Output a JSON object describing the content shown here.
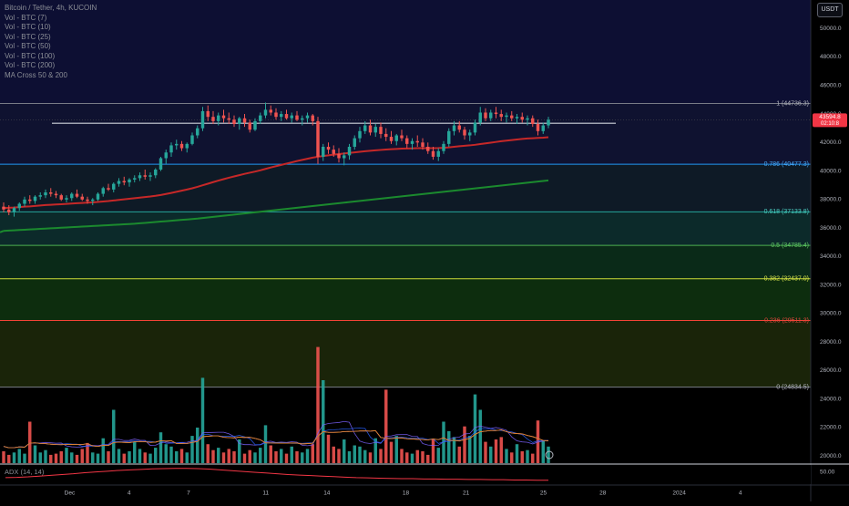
{
  "header": {
    "symbol_line": "Bitcoin / Tether, 4h, KUCOIN",
    "indicators": [
      "Vol - BTC (7)",
      "Vol - BTC (10)",
      "Vol - BTC (25)",
      "Vol - BTC (50)",
      "Vol - BTC (100)",
      "Vol - BTC (200)",
      "MA Cross 50 & 200"
    ],
    "currency": "USDT"
  },
  "price_scale": {
    "ticks": [
      "50000.0",
      "48000.0",
      "46000.0",
      "44000.0",
      "42000.0",
      "40000.0",
      "38000.0",
      "36000.0",
      "34000.0",
      "32000.0",
      "30000.0",
      "28000.0",
      "26000.0",
      "24000.0",
      "22000.0",
      "20000.0"
    ],
    "tick_values": [
      50000,
      48000,
      46000,
      44000,
      42000,
      40000,
      38000,
      36000,
      34000,
      32000,
      30000,
      28000,
      26000,
      24000,
      22000,
      20000
    ],
    "last_price": "43594.8",
    "countdown": "02:10:8"
  },
  "fibonacci": {
    "levels": [
      {
        "label": "1 (44736.3)",
        "value": 44736.3,
        "line": "#787b86",
        "fill": "#0f1230",
        "label_color": "#b2b5be"
      },
      {
        "label": "0.786 (40477.3)",
        "value": 40477.3,
        "line": "#2196f3",
        "fill": "#0e1a26",
        "label_color": "#4aa8f5"
      },
      {
        "label": "0.618 (37133.8)",
        "value": 37133.8,
        "line": "#26a69a",
        "fill": "#0c2a2a",
        "label_color": "#4dd0c3"
      },
      {
        "label": "0.5 (34785.4)",
        "value": 34785.4,
        "line": "#4caf50",
        "fill": "#0a2a18",
        "label_color": "#5fc864"
      },
      {
        "label": "0.382 (32437.0)",
        "value": 32437.0,
        "line": "#cddc39",
        "fill": "#0d2d0e",
        "label_color": "#d6e34c"
      },
      {
        "label": "0.236 (29511.3)",
        "value": 29511.3,
        "line": "#f44336",
        "fill": "#1a2409",
        "label_color": "#e0473c"
      },
      {
        "label": "0 (24834.5)",
        "value": 24834.5,
        "line": "#787b86",
        "fill": "#2b0b0b",
        "label_color": "#b2b5be"
      }
    ],
    "bottom_fill": "#000000"
  },
  "time_axis": {
    "labels": [
      "Dec",
      "4",
      "7",
      "11",
      "14",
      "18",
      "21",
      "25",
      "28",
      "2024",
      "4"
    ],
    "positions": [
      0.082,
      0.152,
      0.222,
      0.313,
      0.385,
      0.478,
      0.549,
      0.64,
      0.71,
      0.8,
      0.872
    ]
  },
  "adx": {
    "label": "ADX (14, 14)",
    "scale_label": "50.00",
    "scale_value": 50,
    "values": [
      18,
      19,
      21,
      24,
      27,
      30,
      33,
      37,
      40,
      43,
      46,
      48,
      50,
      52,
      53,
      54,
      54,
      53,
      51,
      48,
      45,
      42,
      39,
      36,
      33,
      30,
      28,
      26,
      24,
      22,
      20,
      18,
      17,
      16,
      15,
      14,
      14,
      13,
      13,
      12,
      12,
      11,
      11,
      10,
      10,
      9,
      9,
      8,
      8
    ],
    "color": "#f23645"
  },
  "colors": {
    "up": "#26a69a",
    "down": "#ef5350",
    "sma50": "#c62828",
    "sma200": "#1b8a2e",
    "hline": "#d1d4dc",
    "last_price_bg": "#f23645"
  },
  "chart_data": {
    "type": "candlestick",
    "symbol": "Bitcoin / Tether",
    "interval": "4h",
    "exchange": "KUCOIN",
    "y_range": [
      19500,
      52000
    ],
    "candles": [
      [
        37500,
        37800,
        37100,
        37300
      ],
      [
        37300,
        37600,
        36900,
        37100
      ],
      [
        37100,
        37500,
        36800,
        37400
      ],
      [
        37400,
        37800,
        37200,
        37700
      ],
      [
        37700,
        38200,
        37500,
        38000
      ],
      [
        38000,
        38300,
        37700,
        37900
      ],
      [
        37900,
        38300,
        37700,
        38200
      ],
      [
        38200,
        38500,
        38000,
        38300
      ],
      [
        38300,
        38700,
        38100,
        38500
      ],
      [
        38500,
        38800,
        38200,
        38400
      ],
      [
        38400,
        38600,
        38100,
        38300
      ],
      [
        38300,
        38400,
        37900,
        38000
      ],
      [
        38000,
        38300,
        37800,
        38100
      ],
      [
        38100,
        38500,
        37900,
        38400
      ],
      [
        38400,
        38700,
        38100,
        38200
      ],
      [
        38200,
        38400,
        37900,
        38000
      ],
      [
        38000,
        38200,
        37700,
        37900
      ],
      [
        37900,
        38100,
        37600,
        38000
      ],
      [
        38000,
        38500,
        37900,
        38400
      ],
      [
        38400,
        38900,
        38200,
        38800
      ],
      [
        38800,
        39100,
        38600,
        38700
      ],
      [
        38700,
        39200,
        38500,
        39100
      ],
      [
        39100,
        39500,
        38900,
        39300
      ],
      [
        39300,
        39600,
        39000,
        39200
      ],
      [
        39200,
        39500,
        38900,
        39400
      ],
      [
        39400,
        39700,
        39200,
        39500
      ],
      [
        39500,
        39900,
        39300,
        39700
      ],
      [
        39700,
        40100,
        39400,
        39600
      ],
      [
        39600,
        39900,
        39300,
        39700
      ],
      [
        39700,
        40200,
        39500,
        40100
      ],
      [
        40100,
        41000,
        40000,
        40900
      ],
      [
        40900,
        41500,
        40500,
        41300
      ],
      [
        41300,
        42000,
        41000,
        41800
      ],
      [
        41800,
        42200,
        41500,
        41900
      ],
      [
        41900,
        42100,
        41400,
        41600
      ],
      [
        41600,
        42000,
        41300,
        41900
      ],
      [
        41900,
        42700,
        41800,
        42500
      ],
      [
        42500,
        43200,
        42300,
        43000
      ],
      [
        43000,
        44500,
        42800,
        44200
      ],
      [
        44200,
        44600,
        43500,
        43800
      ],
      [
        43800,
        44200,
        43300,
        43500
      ],
      [
        43500,
        44100,
        43200,
        43900
      ],
      [
        43900,
        44300,
        43400,
        43700
      ],
      [
        43700,
        44100,
        43300,
        43600
      ],
      [
        43600,
        43900,
        43100,
        43300
      ],
      [
        43300,
        43800,
        42900,
        43700
      ],
      [
        43700,
        44000,
        43100,
        43400
      ],
      [
        43400,
        43600,
        42700,
        42900
      ],
      [
        42900,
        43700,
        42800,
        43500
      ],
      [
        43500,
        44100,
        43300,
        43900
      ],
      [
        43900,
        44800,
        43700,
        44300
      ],
      [
        44300,
        44600,
        43900,
        44100
      ],
      [
        44100,
        44400,
        43600,
        43800
      ],
      [
        43800,
        44200,
        43500,
        44000
      ],
      [
        44000,
        44300,
        43600,
        43700
      ],
      [
        43700,
        44100,
        43400,
        43900
      ],
      [
        43900,
        44200,
        43500,
        43600
      ],
      [
        43600,
        43900,
        43200,
        43700
      ],
      [
        43700,
        44100,
        43400,
        43900
      ],
      [
        43900,
        44000,
        43200,
        43500
      ],
      [
        43500,
        43800,
        40500,
        41000
      ],
      [
        41000,
        41900,
        40700,
        41700
      ],
      [
        41700,
        42000,
        41200,
        41500
      ],
      [
        41500,
        41800,
        41000,
        41200
      ],
      [
        41200,
        41600,
        40600,
        40900
      ],
      [
        40900,
        41300,
        40400,
        41100
      ],
      [
        41100,
        41900,
        40800,
        41700
      ],
      [
        41700,
        42500,
        41500,
        42300
      ],
      [
        42300,
        43100,
        42000,
        42800
      ],
      [
        42800,
        43500,
        42600,
        43200
      ],
      [
        43200,
        43600,
        42500,
        42700
      ],
      [
        42700,
        43300,
        42400,
        43100
      ],
      [
        43100,
        43400,
        42300,
        42600
      ],
      [
        42600,
        43000,
        42100,
        42400
      ],
      [
        42400,
        42800,
        41900,
        42100
      ],
      [
        42100,
        42600,
        41800,
        42500
      ],
      [
        42500,
        42900,
        42100,
        42300
      ],
      [
        42300,
        42500,
        41600,
        41900
      ],
      [
        41900,
        42300,
        41500,
        42100
      ],
      [
        42100,
        42500,
        41700,
        42000
      ],
      [
        42000,
        42300,
        41500,
        41700
      ],
      [
        41700,
        42000,
        41200,
        41400
      ],
      [
        41400,
        41700,
        40800,
        41000
      ],
      [
        41000,
        41600,
        40700,
        41400
      ],
      [
        41400,
        42100,
        41200,
        41900
      ],
      [
        41900,
        43000,
        41700,
        42800
      ],
      [
        42800,
        43500,
        42500,
        43200
      ],
      [
        43200,
        43500,
        42700,
        42900
      ],
      [
        42900,
        43100,
        42200,
        42500
      ],
      [
        42500,
        42900,
        42100,
        42700
      ],
      [
        42700,
        43600,
        42500,
        43400
      ],
      [
        43400,
        44500,
        43200,
        44100
      ],
      [
        44100,
        44400,
        43500,
        43700
      ],
      [
        43700,
        44300,
        43500,
        44100
      ],
      [
        44100,
        44500,
        43700,
        44000
      ],
      [
        44000,
        44300,
        43500,
        43800
      ],
      [
        43800,
        44100,
        43400,
        43900
      ],
      [
        43900,
        44200,
        43500,
        43700
      ],
      [
        43700,
        44000,
        43300,
        43800
      ],
      [
        43800,
        44100,
        43400,
        43600
      ],
      [
        43600,
        43900,
        43200,
        43700
      ],
      [
        43700,
        43900,
        43100,
        43300
      ],
      [
        43300,
        43600,
        42500,
        42800
      ],
      [
        42800,
        43400,
        42600,
        43200
      ],
      [
        43200,
        43800,
        43000,
        43594.8
      ]
    ],
    "volume": [
      0.1,
      0.07,
      0.09,
      0.12,
      0.08,
      0.35,
      0.15,
      0.09,
      0.11,
      0.07,
      0.08,
      0.1,
      0.13,
      0.09,
      0.07,
      0.12,
      0.17,
      0.09,
      0.08,
      0.21,
      0.1,
      0.45,
      0.12,
      0.08,
      0.1,
      0.18,
      0.12,
      0.09,
      0.08,
      0.13,
      0.26,
      0.16,
      0.14,
      0.1,
      0.12,
      0.09,
      0.23,
      0.3,
      0.72,
      0.16,
      0.11,
      0.13,
      0.09,
      0.12,
      0.1,
      0.2,
      0.08,
      0.11,
      0.09,
      0.13,
      0.32,
      0.15,
      0.1,
      0.12,
      0.08,
      0.14,
      0.1,
      0.09,
      0.12,
      0.16,
      0.98,
      0.7,
      0.24,
      0.14,
      0.12,
      0.2,
      0.1,
      0.15,
      0.14,
      0.11,
      0.09,
      0.21,
      0.12,
      0.62,
      0.18,
      0.23,
      0.12,
      0.09,
      0.08,
      0.11,
      0.1,
      0.07,
      0.2,
      0.13,
      0.35,
      0.27,
      0.22,
      0.14,
      0.31,
      0.23,
      0.58,
      0.45,
      0.18,
      0.14,
      0.2,
      0.22,
      0.12,
      0.09,
      0.16,
      0.1,
      0.11,
      0.08,
      0.36,
      0.19,
      0.14
    ],
    "sma50": [
      37400,
      37420,
      37440,
      37470,
      37500,
      37520,
      37550,
      37580,
      37610,
      37630,
      37650,
      37670,
      37690,
      37720,
      37740,
      37760,
      37780,
      37800,
      37830,
      37860,
      37890,
      37930,
      37970,
      38010,
      38050,
      38090,
      38130,
      38170,
      38210,
      38260,
      38320,
      38390,
      38460,
      38540,
      38620,
      38700,
      38790,
      38890,
      39000,
      39110,
      39220,
      39330,
      39430,
      39530,
      39620,
      39710,
      39800,
      39880,
      39960,
      40050,
      40150,
      40250,
      40340,
      40430,
      40520,
      40610,
      40700,
      40780,
      40860,
      40940,
      41000,
      41050,
      41100,
      41150,
      41190,
      41230,
      41270,
      41310,
      41350,
      41390,
      41420,
      41450,
      41480,
      41510,
      41530,
      41550,
      41570,
      41580,
      41590,
      41600,
      41600,
      41600,
      41600,
      41610,
      41630,
      41660,
      41700,
      41740,
      41770,
      41800,
      41840,
      41890,
      41940,
      41990,
      42040,
      42090,
      42130,
      42170,
      42210,
      42250,
      42280,
      42300,
      42320,
      42340,
      42370
    ],
    "sma200": [
      35800,
      35820,
      35840,
      35860,
      35880,
      35900,
      35920,
      35940,
      35960,
      35980,
      36000,
      36020,
      36040,
      36060,
      36080,
      36100,
      36120,
      36140,
      36160,
      36180,
      36200,
      36220,
      36240,
      36260,
      36280,
      36300,
      36330,
      36360,
      36390,
      36420,
      36450,
      36480,
      36510,
      36540,
      36570,
      36600,
      36630,
      36660,
      36700,
      36740,
      36780,
      36820,
      36860,
      36900,
      36940,
      36980,
      37020,
      37060,
      37100,
      37140,
      37180,
      37220,
      37260,
      37300,
      37340,
      37380,
      37420,
      37460,
      37500,
      37540,
      37580,
      37620,
      37660,
      37700,
      37740,
      37780,
      37820,
      37860,
      37900,
      37940,
      37980,
      38020,
      38060,
      38100,
      38140,
      38180,
      38220,
      38260,
      38300,
      38340,
      38380,
      38420,
      38460,
      38500,
      38540,
      38580,
      38620,
      38660,
      38700,
      38740,
      38780,
      38820,
      38860,
      38900,
      38940,
      38980,
      39020,
      39060,
      39100,
      39140,
      39180,
      39220,
      39260,
      39300,
      39340
    ],
    "horizontal_line": 43350
  }
}
